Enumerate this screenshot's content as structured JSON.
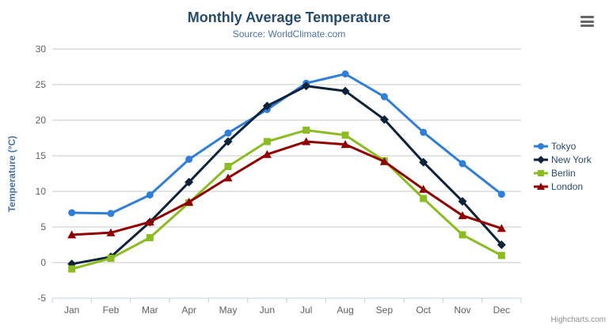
{
  "chart": {
    "credits_label": "Highcharts.com"
  },
  "chart_data": {
    "type": "line",
    "title": "Monthly Average Temperature",
    "subtitle": "Source: WorldClimate.com",
    "categories": [
      "Jan",
      "Feb",
      "Mar",
      "Apr",
      "May",
      "Jun",
      "Jul",
      "Aug",
      "Sep",
      "Oct",
      "Nov",
      "Dec"
    ],
    "series": [
      {
        "name": "Tokyo",
        "color": "#2f7ed8",
        "marker": "circle",
        "values": [
          7.0,
          6.9,
          9.5,
          14.5,
          18.2,
          21.5,
          25.2,
          26.5,
          23.3,
          18.3,
          13.9,
          9.6
        ]
      },
      {
        "name": "New York",
        "color": "#0d233a",
        "marker": "diamond",
        "values": [
          -0.2,
          0.8,
          5.7,
          11.3,
          17.0,
          22.0,
          24.8,
          24.1,
          20.1,
          14.1,
          8.6,
          2.5
        ]
      },
      {
        "name": "Berlin",
        "color": "#8bbc21",
        "marker": "square",
        "values": [
          -0.9,
          0.6,
          3.5,
          8.4,
          13.5,
          17.0,
          18.6,
          17.9,
          14.3,
          9.0,
          3.9,
          1.0
        ]
      },
      {
        "name": "London",
        "color": "#910000",
        "marker": "triangle",
        "values": [
          3.9,
          4.2,
          5.7,
          8.5,
          11.9,
          15.2,
          17.0,
          16.6,
          14.2,
          10.3,
          6.6,
          4.8
        ]
      }
    ],
    "xlabel": "",
    "ylabel": "Temperature (°C)",
    "ylim": [
      -5,
      30
    ],
    "y_tick_interval": 5,
    "grid": true,
    "legend_position": "right",
    "colors": {
      "grid_line": "#c8c8c8",
      "axis_line": "#c0d0e0",
      "axis_label": "#606060",
      "title": "#274b6d",
      "subtitle": "#4d759e",
      "axis_title": "#4572A7",
      "legend_text": "#274b6d",
      "credits_text": "#909090",
      "menu_icon": "#666666"
    }
  }
}
